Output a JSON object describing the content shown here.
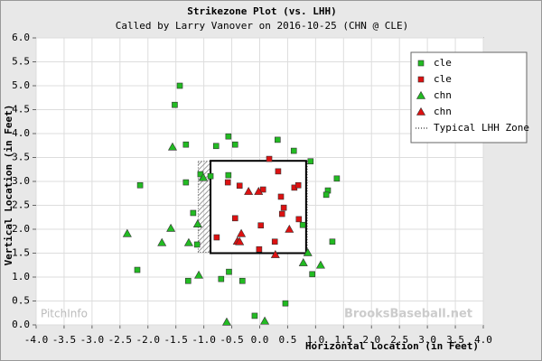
{
  "chart_data": {
    "type": "scatter",
    "title": "Strikezone Plot (vs. LHH)",
    "subtitle": "Called by Larry Vanover on 2016-10-25 (CHN @ CLE)",
    "x_label": "Horizontal Location (in Feet)",
    "y_label": "Vertical Location (in Feet)",
    "watermarks": [
      "PitchInfo",
      "BrooksBaseball.net"
    ],
    "xlim": [
      -4,
      4
    ],
    "ylim": [
      0,
      6
    ],
    "grid": true,
    "legend": "upper right",
    "xticks": [
      {
        "value": -4,
        "label": "-4.0"
      },
      {
        "value": -3.5,
        "label": "-3.5"
      },
      {
        "value": -3,
        "label": "-3.0"
      },
      {
        "value": -2.5,
        "label": "-2.5"
      },
      {
        "value": -2,
        "label": "-2.0"
      },
      {
        "value": -1.5,
        "label": "-1.5"
      },
      {
        "value": -1,
        "label": "-1.0"
      },
      {
        "value": -0.5,
        "label": "-0.5"
      },
      {
        "value": 0,
        "label": "0.0"
      },
      {
        "value": 0.5,
        "label": "0.5"
      },
      {
        "value": 1,
        "label": "1.0"
      },
      {
        "value": 1.5,
        "label": "1.5"
      },
      {
        "value": 2,
        "label": "2.0"
      },
      {
        "value": 2.5,
        "label": "2.5"
      },
      {
        "value": 3,
        "label": "3.0"
      },
      {
        "value": 3.5,
        "label": "3.5"
      },
      {
        "value": 4,
        "label": "4.0"
      }
    ],
    "yticks": [
      {
        "value": 0,
        "label": "0.0"
      },
      {
        "value": 0.5,
        "label": "0.5"
      },
      {
        "value": 1,
        "label": "1.0"
      },
      {
        "value": 1.5,
        "label": "1.5"
      },
      {
        "value": 2,
        "label": "2.0"
      },
      {
        "value": 2.5,
        "label": "2.5"
      },
      {
        "value": 3,
        "label": "3.0"
      },
      {
        "value": 3.5,
        "label": "3.5"
      },
      {
        "value": 4,
        "label": "4.0"
      },
      {
        "value": 4.5,
        "label": "4.5"
      },
      {
        "value": 5,
        "label": "5.0"
      },
      {
        "value": 5.5,
        "label": "5.5"
      },
      {
        "value": 6,
        "label": "6.0"
      }
    ],
    "zone": {
      "x": [
        -0.88,
        0.83
      ],
      "y": [
        1.5,
        3.43
      ]
    },
    "lhh_zone": {
      "name": "Typical LHH Zone",
      "x": [
        -1.1,
        0.85
      ],
      "y": [
        1.52,
        3.42
      ]
    },
    "series": [
      {
        "name": "cle",
        "marker": "square",
        "color": "#22bb22",
        "x": [
          -1.43,
          -1.52,
          -1.32,
          -0.78,
          -0.56,
          -0.44,
          0.32,
          0.61,
          0.91,
          1.38,
          1.22,
          1.19,
          -2.14,
          -1.32,
          -1.06,
          -0.88,
          -0.56,
          -1.19,
          -1.12,
          0.77,
          1.3,
          -2.19,
          -1.28,
          -0.69,
          -0.55,
          -0.31,
          0.46,
          0.94,
          -0.09
        ],
        "values": [
          5.0,
          4.6,
          3.77,
          3.74,
          3.94,
          3.77,
          3.87,
          3.64,
          3.42,
          3.06,
          2.81,
          2.72,
          2.92,
          2.98,
          3.15,
          3.11,
          3.13,
          2.34,
          1.68,
          2.09,
          1.74,
          1.15,
          0.92,
          0.96,
          1.11,
          0.92,
          0.45,
          1.06,
          0.19
        ]
      },
      {
        "name": "cle",
        "marker": "square",
        "color": "#dd1111",
        "x": [
          0.17,
          0.33,
          -0.57,
          -0.36,
          0.06,
          0.38,
          0.43,
          0.62,
          0.69,
          -0.44,
          0.02,
          0.7,
          -0.77,
          0.27,
          -0.01,
          0.4
        ],
        "values": [
          3.47,
          3.21,
          2.98,
          2.91,
          2.83,
          2.68,
          2.45,
          2.87,
          2.92,
          2.23,
          2.08,
          2.21,
          1.83,
          1.74,
          1.58,
          2.32
        ]
      },
      {
        "name": "chn",
        "marker": "triangle",
        "color": "#22bb22",
        "x": [
          -1.56,
          -1.01,
          -1.59,
          -1.11,
          -2.37,
          -1.75,
          -1.27,
          -1.09,
          0.78,
          0.86,
          1.09,
          -0.59,
          0.09
        ],
        "values": [
          3.72,
          3.08,
          2.02,
          2.11,
          1.91,
          1.72,
          1.72,
          1.04,
          1.3,
          1.51,
          1.25,
          0.06,
          0.08
        ]
      },
      {
        "name": "chn",
        "marker": "triangle",
        "color": "#dd1111",
        "x": [
          -0.2,
          -0.02,
          -0.33,
          -0.4,
          -0.36,
          0.53,
          0.28
        ],
        "values": [
          2.79,
          2.79,
          1.91,
          1.75,
          1.74,
          2.0,
          1.47
        ]
      }
    ]
  }
}
